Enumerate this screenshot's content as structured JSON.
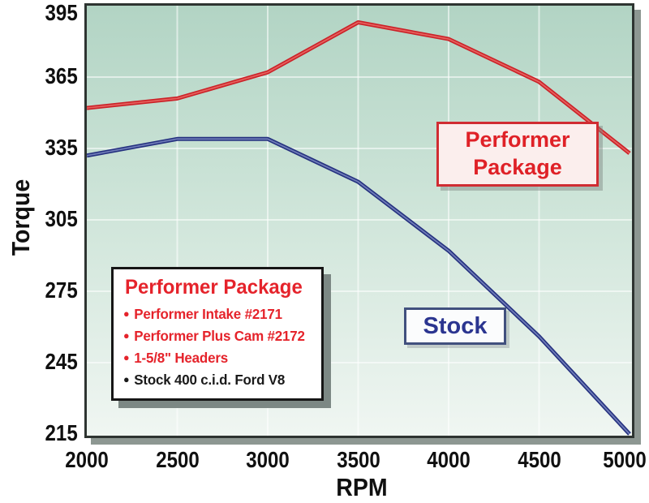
{
  "chart_data": {
    "type": "line",
    "title": "",
    "xlabel": "RPM",
    "ylabel": "Torque",
    "xlim": [
      2000,
      5000
    ],
    "ylim": [
      215,
      395
    ],
    "x_ticks": [
      2000,
      2500,
      3000,
      3500,
      4000,
      4500,
      5000
    ],
    "y_ticks": [
      395,
      365,
      335,
      305,
      275,
      245,
      215
    ],
    "grid": true,
    "legend_position": "in-chart callout boxes",
    "x": [
      2000,
      2500,
      3000,
      3500,
      4000,
      4500,
      5000
    ],
    "series": [
      {
        "name": "Performer Package",
        "color": "#cb2128",
        "highlight": "#ea6b66",
        "values": [
          352,
          356,
          367,
          388,
          381,
          363,
          333
        ]
      },
      {
        "name": "Stock",
        "color": "#25317f",
        "highlight": "#7d89c2",
        "values": [
          332,
          339,
          339,
          321,
          292,
          256,
          215
        ]
      }
    ]
  },
  "callouts": {
    "performer": {
      "line1": "Performer",
      "line2": "Package"
    },
    "stock": {
      "label": "Stock"
    }
  },
  "legend_box": {
    "title": "Performer Package",
    "items": [
      {
        "text": "Performer Intake #2171",
        "color": "#e5232b"
      },
      {
        "text": "Performer Plus Cam #2172",
        "color": "#e5232b"
      },
      {
        "text": "1-5/8\" Headers",
        "color": "#e5232b"
      },
      {
        "text": "Stock 400 c.i.d. Ford V8",
        "color": "#1a1a1a"
      }
    ]
  },
  "colors": {
    "plot_bg_top": "#b2d4c4",
    "plot_bg_mid": "#cde4d8",
    "plot_bg_bottom": "#f0f6f2",
    "grid": "rgba(255,255,255,0.55)",
    "frame": "#2e3431",
    "tick_text": "#101010"
  }
}
